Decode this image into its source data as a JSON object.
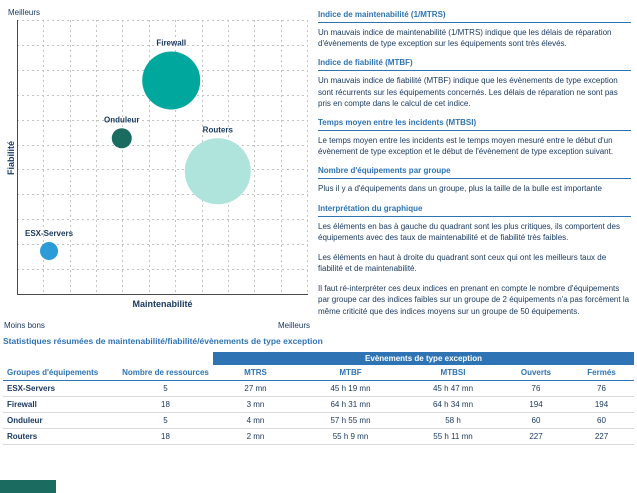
{
  "chart": {
    "corner_top_left": "Meilleurs",
    "corner_bottom_left": "Moins bons",
    "corner_bottom_right": "Meilleurs",
    "xlabel": "Maintenabilité",
    "ylabel": "Fiabilité"
  },
  "chart_data": {
    "type": "scatter",
    "subtype": "bubble",
    "title": "",
    "xlabel": "Maintenabilité",
    "ylabel": "Fiabilité",
    "x_axis_endpoints": {
      "left": "Moins bons",
      "right": "Meilleurs"
    },
    "y_axis_endpoints": {
      "bottom": "Moins bons",
      "top": "Meilleurs"
    },
    "grid": "dashed",
    "bubble_size_meaning": "nombre d'équipements dans le groupe",
    "points": [
      {
        "name": "Routers",
        "x": 0.69,
        "y": 0.45,
        "size": 18,
        "radius_px": 33,
        "color": "#AEE4DC"
      },
      {
        "name": "Firewall",
        "x": 0.53,
        "y": 0.78,
        "size": 18,
        "radius_px": 29,
        "color": "#00A79C"
      },
      {
        "name": "Onduleur",
        "x": 0.36,
        "y": 0.57,
        "size": 5,
        "radius_px": 10,
        "color": "#1A6B60"
      },
      {
        "name": "ESX-Servers",
        "x": 0.11,
        "y": 0.16,
        "size": 5,
        "radius_px": 9,
        "color": "#2C9CD9"
      }
    ]
  },
  "info": {
    "sections": [
      {
        "heading": "Indice de maintenabilité (1/MTRS)",
        "p1": "Un mauvais indice de maintenabilité (1/MTRS) indique que les délais de réparation d'évènements de type exception sur les équipements sont très élevés."
      },
      {
        "heading": "Indice de fiabilité (MTBF)",
        "p1": "Un mauvais indice de fiabilité (MTBF) indique que les évènements de type exception sont récurrents sur les équipements concernés. Les délais de réparation ne sont pas pris en compte dans le calcul de cet indice."
      },
      {
        "heading": "Temps moyen entre les incidents (MTBSI)",
        "p1": "Le temps moyen entre les incidents est le temps moyen mesuré entre le début d'un évènement de type exception et le début de l'évènement de type exception suivant."
      },
      {
        "heading": "Nombre d'équipements par groupe",
        "p1": "Plus il y a d'équipements dans un groupe, plus la taille de la bulle est importante"
      },
      {
        "heading": "Interprétation du graphique",
        "p1": "Les éléments en bas à gauche du quadrant sont les plus critiques, ils comportent des équipements avec des taux de maintenabilité et de fiabilité très faibles.",
        "p2": "Les éléments en haut à droite du quadrant sont ceux qui ont les meilleurs taux de fiabilité et de maintenabilité.",
        "p3": "Il faut ré-interpréter ces deux indices en prenant en compte le nombre d'équipements par groupe car des indices faibles sur un groupe de 2 équipements n'a pas forcément la même criticité que des indices moyens sur un groupe de 50 équipements."
      }
    ]
  },
  "stats_table": {
    "title": "Statistiques résumées de maintenabilité/fiabilité/évènements de type exception",
    "band_header": "Evènements de type exception",
    "columns": [
      "Groupes d'équipements",
      "Nombre de ressources",
      "MTRS",
      "MTBF",
      "MTBSI",
      "Ouverts",
      "Fermés"
    ],
    "rows": [
      [
        "ESX-Servers",
        "5",
        "27 mn",
        "45 h 19 mn",
        "45 h 47 mn",
        "76",
        "76"
      ],
      [
        "Firewall",
        "18",
        "3 mn",
        "64 h 31 mn",
        "64 h 34 mn",
        "194",
        "194"
      ],
      [
        "Onduleur",
        "5",
        "4 mn",
        "57 h 55 mn",
        "58 h",
        "60",
        "60"
      ],
      [
        "Routers",
        "18",
        "2 mn",
        "55 h 9 mn",
        "55 h 11 mn",
        "227",
        "227"
      ]
    ]
  },
  "colors": {
    "heading_blue": "#2E74B5",
    "body_navy": "#17375E",
    "table_band_blue": "#2E74B5",
    "partial_block_teal": "#1C6B61"
  }
}
